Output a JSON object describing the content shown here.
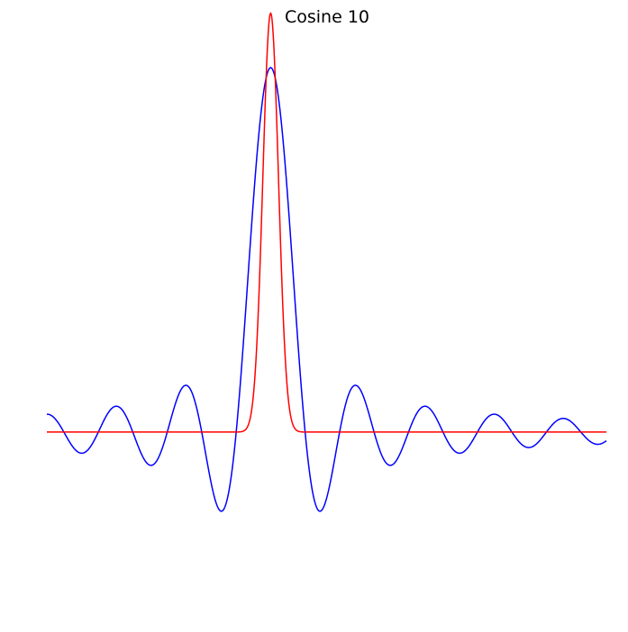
{
  "chart_data": {
    "type": "line",
    "title": "Cosine 10",
    "xlabel": "",
    "ylabel": "",
    "axes_visible": false,
    "grid": false,
    "legend": "none",
    "xlim": [
      -1,
      1
    ],
    "ylim": [
      -0.43,
      1.01
    ],
    "series": [
      {
        "color": "#0000ff",
        "curve": "blue_sinc"
      },
      {
        "color": "#ff0000",
        "curve": "red_gaussian"
      }
    ],
    "peak_x": -0.2,
    "blue_peak": 0.87,
    "blue_baseline": 0.0,
    "red_peak": 1.0,
    "red_baseline": 0.0,
    "red_sigma": 0.028
  }
}
